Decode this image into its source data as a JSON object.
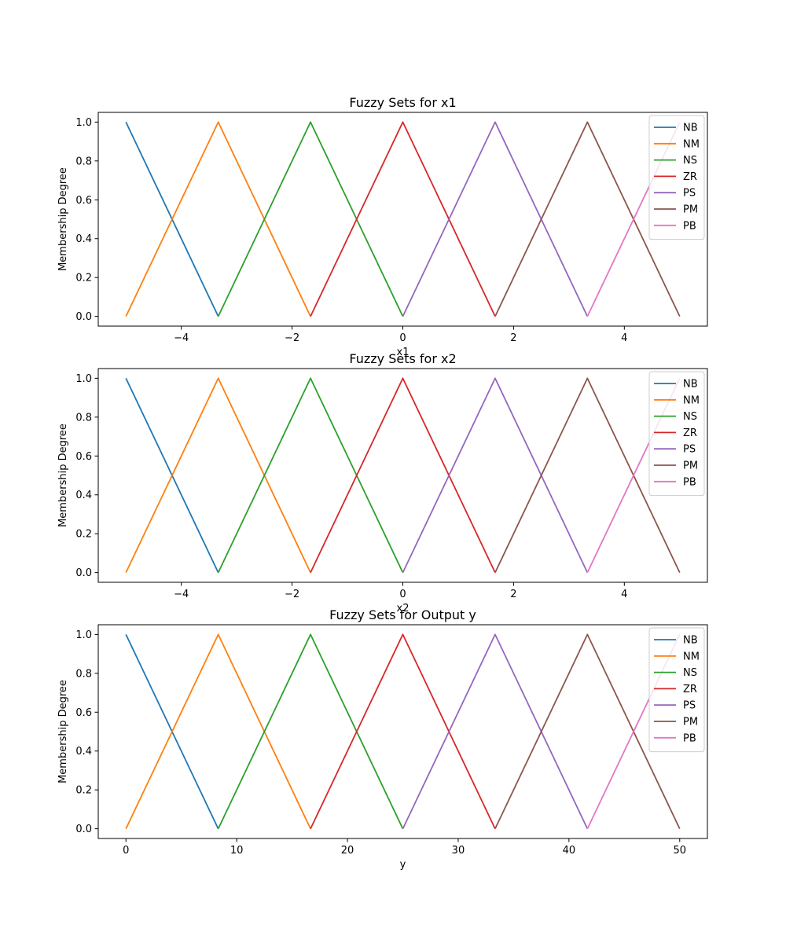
{
  "chart_data": [
    {
      "type": "line",
      "title": "Fuzzy Sets for x1",
      "xlabel": "x1",
      "ylabel": "Membership Degree",
      "xlim": [
        -5.5,
        5.5
      ],
      "ylim": [
        -0.05,
        1.05
      ],
      "xticks": [
        -4,
        -2,
        0,
        2,
        4
      ],
      "xtick_labels": [
        "−4",
        "−2",
        "0",
        "2",
        "4"
      ],
      "yticks": [
        0.0,
        0.2,
        0.4,
        0.6,
        0.8,
        1.0
      ],
      "ytick_labels": [
        "0.0",
        "0.2",
        "0.4",
        "0.6",
        "0.8",
        "1.0"
      ],
      "legend_position": "upper right",
      "grid": false,
      "series": [
        {
          "name": "NB",
          "color": "#1f77b4",
          "x": [
            -5.0,
            -3.333
          ],
          "y": [
            1.0,
            0.0
          ]
        },
        {
          "name": "NM",
          "color": "#ff7f0e",
          "x": [
            -5.0,
            -3.333,
            -1.667
          ],
          "y": [
            0.0,
            1.0,
            0.0
          ]
        },
        {
          "name": "NS",
          "color": "#2ca02c",
          "x": [
            -3.333,
            -1.667,
            0.0
          ],
          "y": [
            0.0,
            1.0,
            0.0
          ]
        },
        {
          "name": "ZR",
          "color": "#d62728",
          "x": [
            -1.667,
            0.0,
            1.667
          ],
          "y": [
            0.0,
            1.0,
            0.0
          ]
        },
        {
          "name": "PS",
          "color": "#9467bd",
          "x": [
            0.0,
            1.667,
            3.333
          ],
          "y": [
            0.0,
            1.0,
            0.0
          ]
        },
        {
          "name": "PM",
          "color": "#8c564b",
          "x": [
            1.667,
            3.333,
            5.0
          ],
          "y": [
            0.0,
            1.0,
            0.0
          ]
        },
        {
          "name": "PB",
          "color": "#e377c2",
          "x": [
            3.333,
            5.0
          ],
          "y": [
            0.0,
            1.0
          ]
        }
      ]
    },
    {
      "type": "line",
      "title": "Fuzzy Sets for x2",
      "xlabel": "x2",
      "ylabel": "Membership Degree",
      "xlim": [
        -5.5,
        5.5
      ],
      "ylim": [
        -0.05,
        1.05
      ],
      "xticks": [
        -4,
        -2,
        0,
        2,
        4
      ],
      "xtick_labels": [
        "−4",
        "−2",
        "0",
        "2",
        "4"
      ],
      "yticks": [
        0.0,
        0.2,
        0.4,
        0.6,
        0.8,
        1.0
      ],
      "ytick_labels": [
        "0.0",
        "0.2",
        "0.4",
        "0.6",
        "0.8",
        "1.0"
      ],
      "legend_position": "upper right",
      "grid": false,
      "series": [
        {
          "name": "NB",
          "color": "#1f77b4",
          "x": [
            -5.0,
            -3.333
          ],
          "y": [
            1.0,
            0.0
          ]
        },
        {
          "name": "NM",
          "color": "#ff7f0e",
          "x": [
            -5.0,
            -3.333,
            -1.667
          ],
          "y": [
            0.0,
            1.0,
            0.0
          ]
        },
        {
          "name": "NS",
          "color": "#2ca02c",
          "x": [
            -3.333,
            -1.667,
            0.0
          ],
          "y": [
            0.0,
            1.0,
            0.0
          ]
        },
        {
          "name": "ZR",
          "color": "#d62728",
          "x": [
            -1.667,
            0.0,
            1.667
          ],
          "y": [
            0.0,
            1.0,
            0.0
          ]
        },
        {
          "name": "PS",
          "color": "#9467bd",
          "x": [
            0.0,
            1.667,
            3.333
          ],
          "y": [
            0.0,
            1.0,
            0.0
          ]
        },
        {
          "name": "PM",
          "color": "#8c564b",
          "x": [
            1.667,
            3.333,
            5.0
          ],
          "y": [
            0.0,
            1.0,
            0.0
          ]
        },
        {
          "name": "PB",
          "color": "#e377c2",
          "x": [
            3.333,
            5.0
          ],
          "y": [
            0.0,
            1.0
          ]
        }
      ]
    },
    {
      "type": "line",
      "title": "Fuzzy Sets for Output y",
      "xlabel": "y",
      "ylabel": "Membership Degree",
      "xlim": [
        -2.5,
        52.5
      ],
      "ylim": [
        -0.05,
        1.05
      ],
      "xticks": [
        0,
        10,
        20,
        30,
        40,
        50
      ],
      "xtick_labels": [
        "0",
        "10",
        "20",
        "30",
        "40",
        "50"
      ],
      "yticks": [
        0.0,
        0.2,
        0.4,
        0.6,
        0.8,
        1.0
      ],
      "ytick_labels": [
        "0.0",
        "0.2",
        "0.4",
        "0.6",
        "0.8",
        "1.0"
      ],
      "legend_position": "upper right",
      "grid": false,
      "series": [
        {
          "name": "NB",
          "color": "#1f77b4",
          "x": [
            0.0,
            8.333
          ],
          "y": [
            1.0,
            0.0
          ]
        },
        {
          "name": "NM",
          "color": "#ff7f0e",
          "x": [
            0.0,
            8.333,
            16.667
          ],
          "y": [
            0.0,
            1.0,
            0.0
          ]
        },
        {
          "name": "NS",
          "color": "#2ca02c",
          "x": [
            8.333,
            16.667,
            25.0
          ],
          "y": [
            0.0,
            1.0,
            0.0
          ]
        },
        {
          "name": "ZR",
          "color": "#d62728",
          "x": [
            16.667,
            25.0,
            33.333
          ],
          "y": [
            0.0,
            1.0,
            0.0
          ]
        },
        {
          "name": "PS",
          "color": "#9467bd",
          "x": [
            25.0,
            33.333,
            41.667
          ],
          "y": [
            0.0,
            1.0,
            0.0
          ]
        },
        {
          "name": "PM",
          "color": "#8c564b",
          "x": [
            33.333,
            41.667,
            50.0
          ],
          "y": [
            0.0,
            1.0,
            0.0
          ]
        },
        {
          "name": "PB",
          "color": "#e377c2",
          "x": [
            41.667,
            50.0
          ],
          "y": [
            0.0,
            1.0
          ]
        }
      ]
    }
  ]
}
